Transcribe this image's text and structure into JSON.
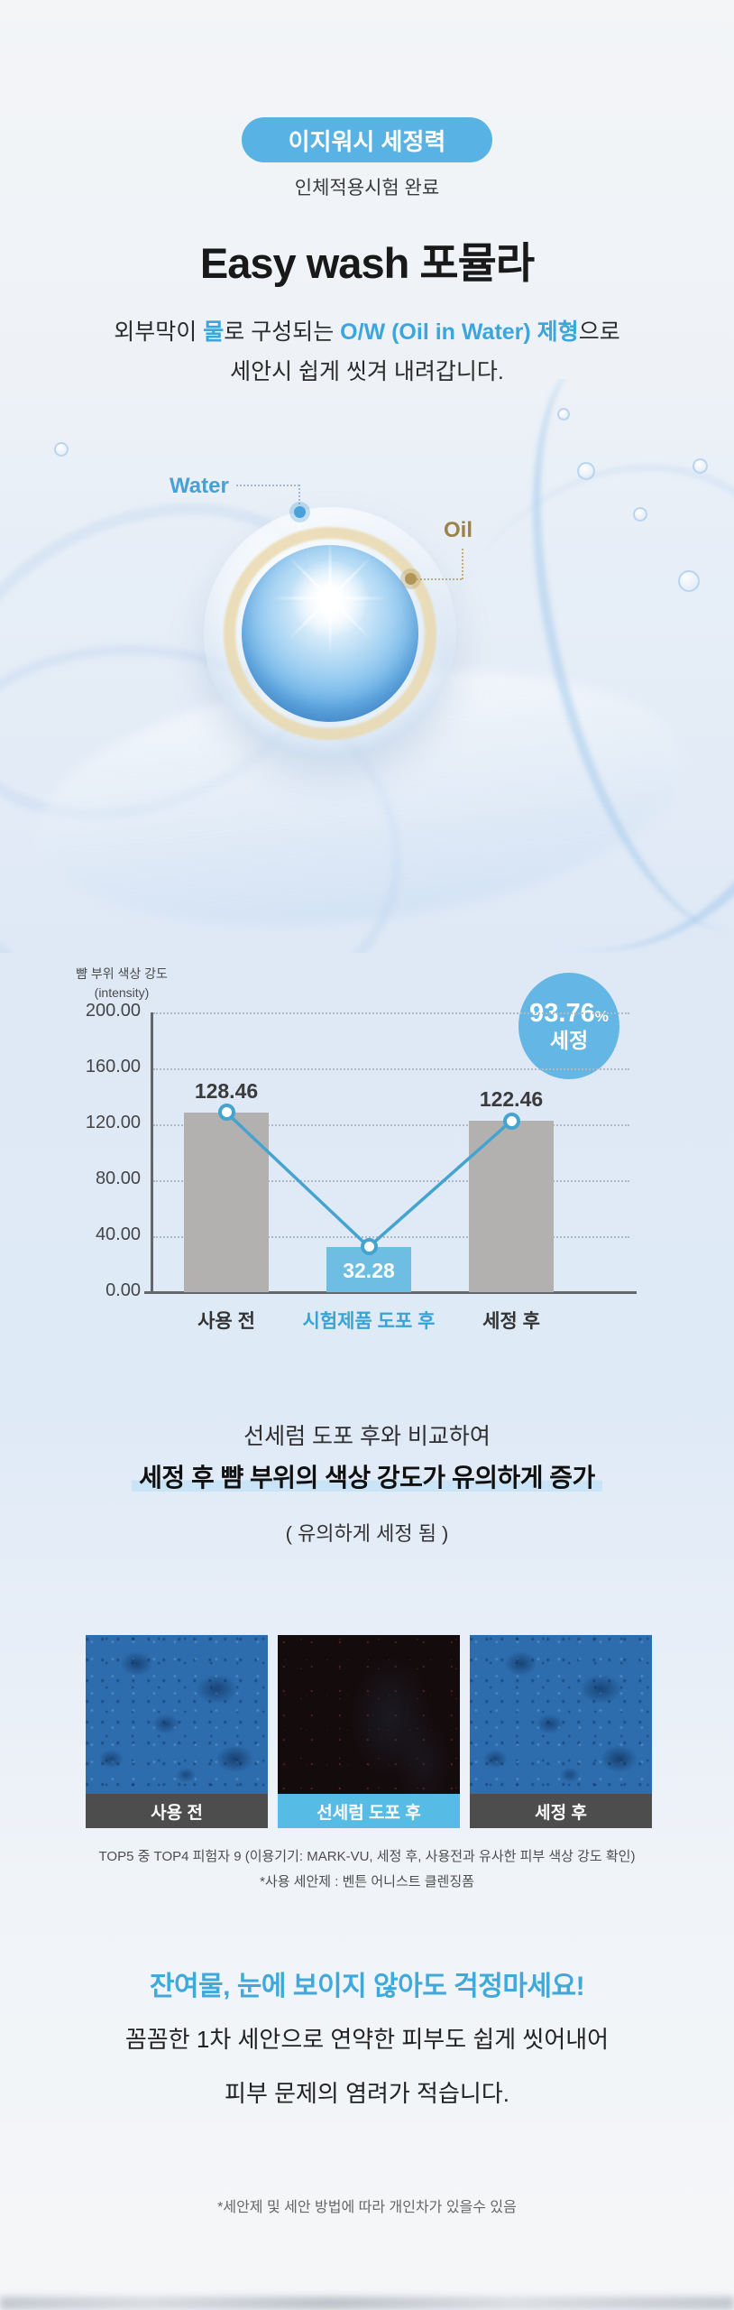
{
  "intro": {
    "badge": "이지워시 세정력",
    "subtitle": "인체적용시험 완료",
    "title": "Easy wash 포뮬라",
    "desc": {
      "p1": "외부막이 ",
      "h1": "물",
      "p2": "로 구성되는 ",
      "h2": "O/W (Oil in Water) 제형",
      "p3": "으로",
      "line2": "세안시 쉽게 씻겨 내려갑니다."
    }
  },
  "diagram": {
    "water_label": "Water",
    "oil_label": "Oil"
  },
  "chart_data": {
    "type": "bar",
    "ylabel": "뺨 부위 색상 강도",
    "ylabel_sub": "(intensity)",
    "categories": [
      "사용 전",
      "시험제품 도포 후",
      "세정 후"
    ],
    "values": [
      128.46,
      32.28,
      122.46
    ],
    "values_display": [
      "128.46",
      "32.28",
      "122.46"
    ],
    "ylim": [
      0,
      200
    ],
    "yticks": [
      "200.00",
      "160.00",
      "120.00",
      "80.00",
      "40.00",
      "0.00"
    ],
    "grid": "horizontal-dotted",
    "legend": "none",
    "highlight_index": 1,
    "bar_color_default": "#b3b1af",
    "bar_color_highlight": "#6ebde2",
    "line_color": "#45a3cf",
    "badge": {
      "value": "93.76",
      "unit": "%",
      "label": "세정"
    }
  },
  "result": {
    "line1": "선세럼 도포 후와 비교하여",
    "line2": "세정 후 뺨 부위의 색상 강도가 유의하게 증가",
    "line3": "( 유의하게 세정 됨 )"
  },
  "comparison": {
    "items": [
      {
        "label": "사용 전"
      },
      {
        "label": "선세럼 도포 후"
      },
      {
        "label": "세정 후"
      }
    ],
    "footnote1": "TOP5 중 TOP4 피험자 9 (이용기기: MARK-VU, 세정 후, 사용전과 유사한 피부 색상 강도 확인)",
    "footnote2": "*사용 세안제 : 벤튼 어니스트 클렌징폼"
  },
  "bottom": {
    "heading": "잔여물, 눈에 보이지 않아도 걱정마세요!",
    "line1": "꼼꼼한 1차 세안으로 연약한 피부도 쉽게 씻어내어",
    "line2": "피부 문제의 염려가 적습니다.",
    "footnote": "*세안제 및 세안 방법에 따라 개인차가 있을수 있음"
  }
}
